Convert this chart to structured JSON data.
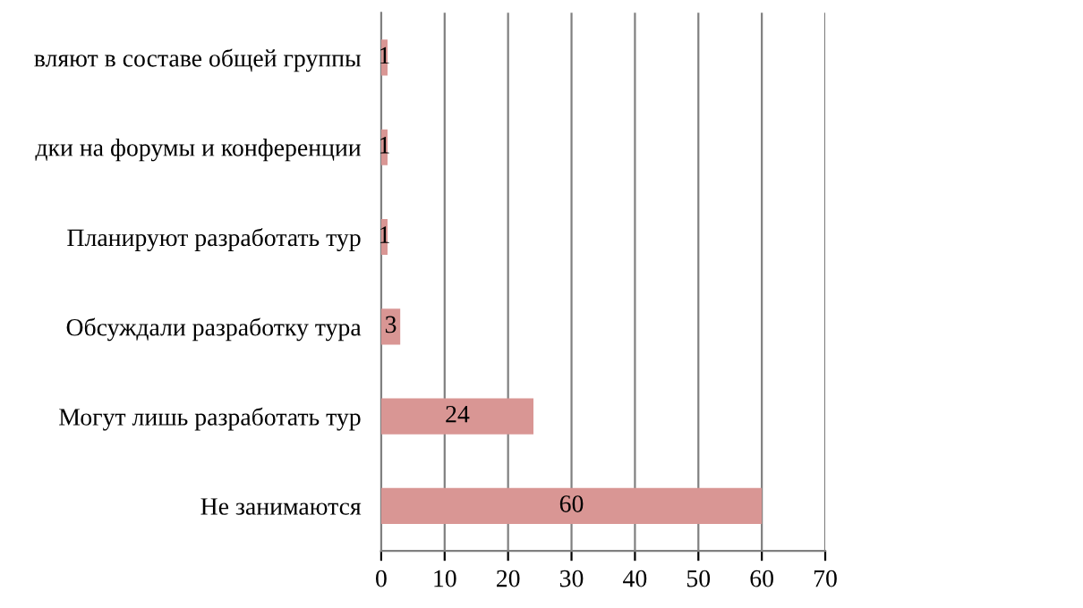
{
  "chart_data": {
    "type": "bar",
    "orientation": "horizontal",
    "categories": [
      "вляют в составе общей группы",
      "дки на форумы и конференции",
      "Планируют разработать тур",
      "Обсуждали разработку тура",
      "Могут лишь разработать тур",
      "Не занимаются"
    ],
    "values": [
      1,
      1,
      1,
      3,
      24,
      60
    ],
    "color": "#d99694",
    "xlim": [
      0,
      70
    ],
    "xticks": [
      0,
      10,
      20,
      30,
      40,
      50,
      60,
      70
    ],
    "grid": "x",
    "data_labels": true
  }
}
